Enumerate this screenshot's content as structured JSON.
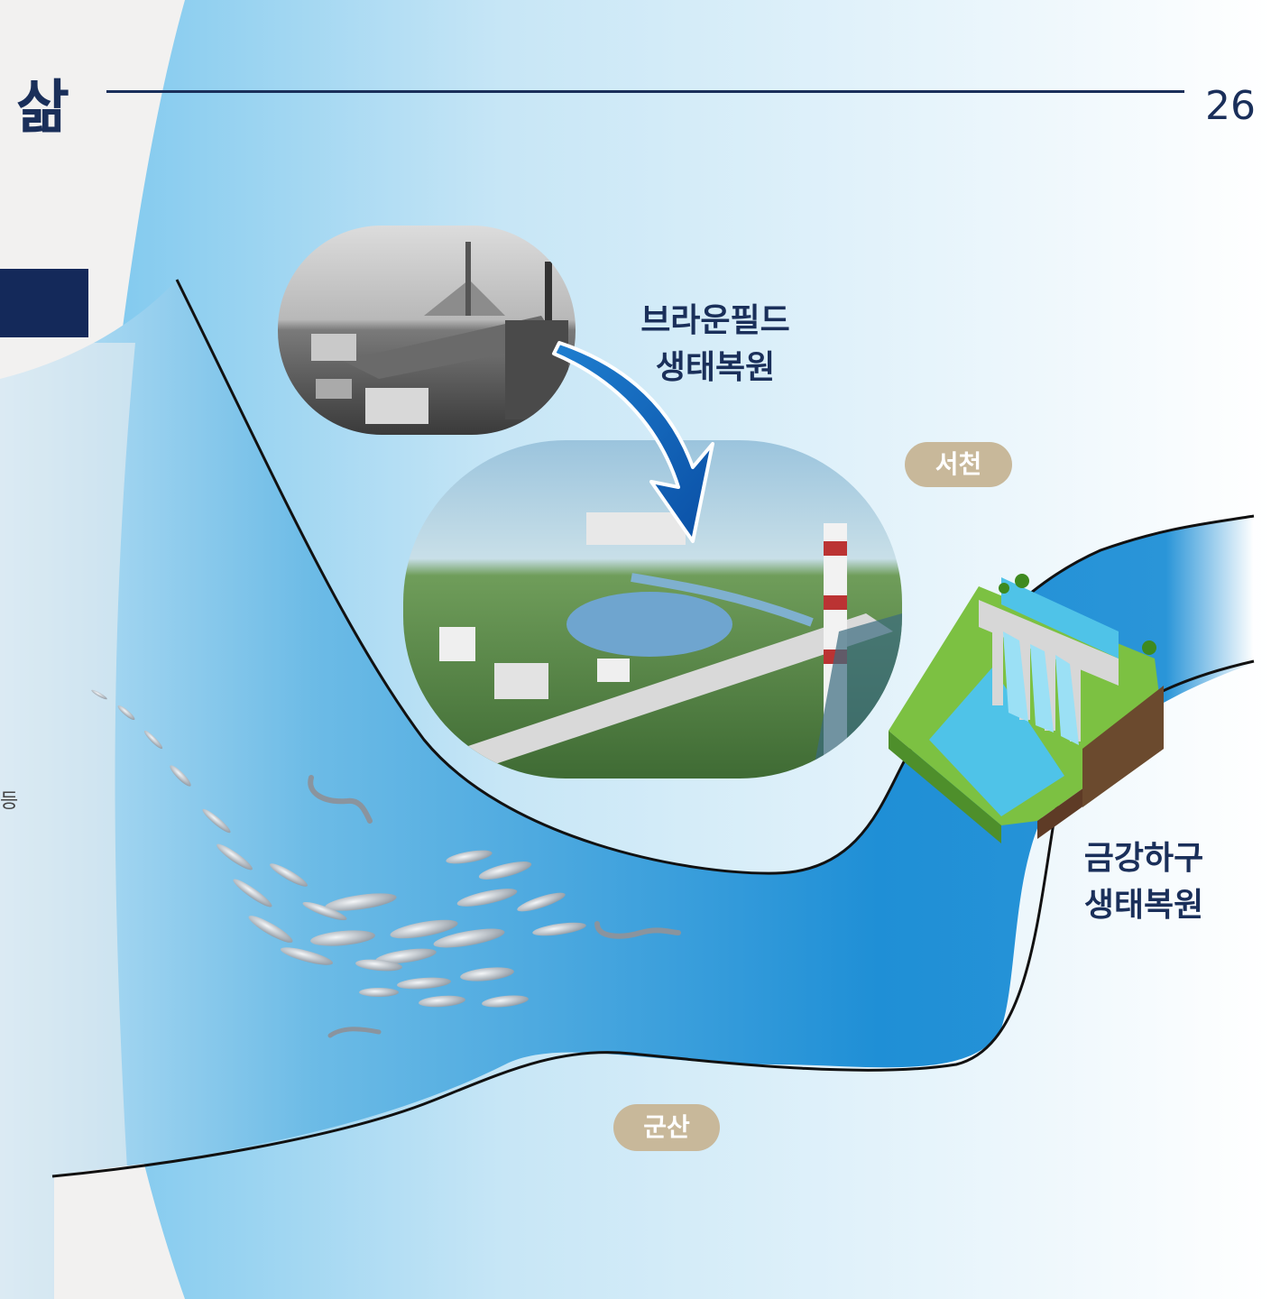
{
  "header": {
    "title": "삶",
    "page_number": "26"
  },
  "side_text": {
    "cutoff_char": "등"
  },
  "places": {
    "seocheon": "서천",
    "gunsan": "군산"
  },
  "captions": {
    "brownfield": {
      "line1": "브라운필드",
      "line2": "생태복원"
    },
    "estuary": {
      "line1": "금강하구",
      "line2": "생태복원"
    }
  },
  "colors": {
    "navy": "#1a2f5a",
    "pill": "#c8b89a",
    "river_blue": "#1f8fd6",
    "background": "#f2f1f0"
  }
}
